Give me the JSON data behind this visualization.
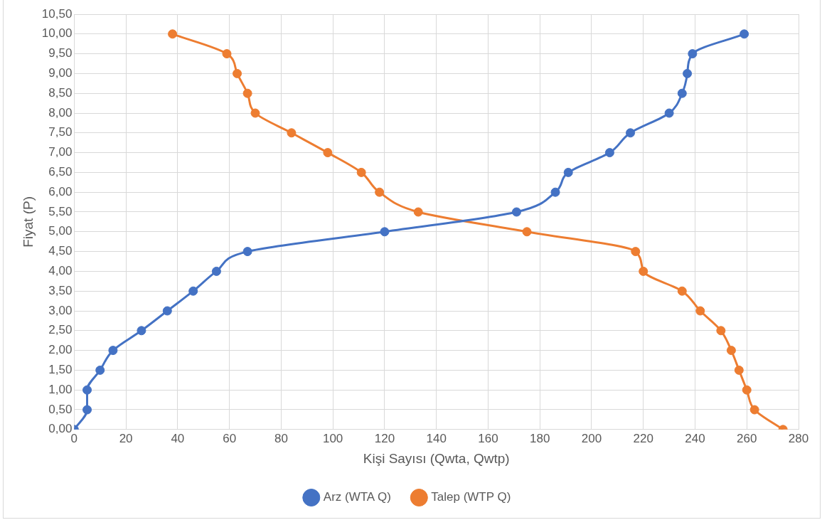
{
  "chart_data": {
    "type": "line",
    "xlabel": "Kişi Sayısı (Qwta, Qwtp)",
    "ylabel": "Fiyat (P)",
    "xlim": [
      0,
      280
    ],
    "xticks": [
      0,
      20,
      40,
      60,
      80,
      100,
      120,
      140,
      160,
      180,
      200,
      220,
      240,
      260,
      280
    ],
    "ylim": [
      0,
      10.5
    ],
    "yticks": [
      {
        "value": 0,
        "label": "0,00"
      },
      {
        "value": 0.5,
        "label": "0,50"
      },
      {
        "value": 1,
        "label": "1,00"
      },
      {
        "value": 1.5,
        "label": "1,50"
      },
      {
        "value": 2,
        "label": "2,00"
      },
      {
        "value": 2.5,
        "label": "2,50"
      },
      {
        "value": 3,
        "label": "3,00"
      },
      {
        "value": 3.5,
        "label": "3,50"
      },
      {
        "value": 4,
        "label": "4,00"
      },
      {
        "value": 4.5,
        "label": "4,50"
      },
      {
        "value": 5,
        "label": "5,00"
      },
      {
        "value": 5.5,
        "label": "5,50"
      },
      {
        "value": 6,
        "label": "6,00"
      },
      {
        "value": 6.5,
        "label": "6,50"
      },
      {
        "value": 7,
        "label": "7,00"
      },
      {
        "value": 7.5,
        "label": "7,50"
      },
      {
        "value": 8,
        "label": "8,00"
      },
      {
        "value": 8.5,
        "label": "8,50"
      },
      {
        "value": 9,
        "label": "9,00"
      },
      {
        "value": 9.5,
        "label": "9,50"
      },
      {
        "value": 10,
        "label": "10,00"
      },
      {
        "value": 10.5,
        "label": "10,50"
      }
    ],
    "grid": true,
    "legend": "bottom",
    "marker": "circle",
    "line_style": "solid",
    "series": [
      {
        "name": "Arz (WTA Q)",
        "color": "#4472c4",
        "x": [
          0,
          5,
          5,
          10,
          15,
          26,
          36,
          46,
          55,
          67,
          120,
          171,
          186,
          191,
          207,
          215,
          230,
          235,
          237,
          239,
          259
        ],
        "values": [
          0,
          0.5,
          1,
          1.5,
          2,
          2.5,
          3,
          3.5,
          4,
          4.5,
          5,
          5.5,
          6,
          6.5,
          7,
          7.5,
          8,
          8.5,
          9,
          9.5,
          10
        ]
      },
      {
        "name": "Talep (WTP Q)",
        "color": "#ed7d31",
        "x": [
          274,
          263,
          260,
          257,
          254,
          250,
          242,
          235,
          220,
          217,
          175,
          133,
          118,
          111,
          98,
          84,
          70,
          67,
          63,
          59,
          38
        ],
        "values": [
          0,
          0.5,
          1,
          1.5,
          2,
          2.5,
          3,
          3.5,
          4,
          4.5,
          5,
          5.5,
          6,
          6.5,
          7,
          7.5,
          8,
          8.5,
          9,
          9.5,
          10
        ]
      }
    ]
  }
}
